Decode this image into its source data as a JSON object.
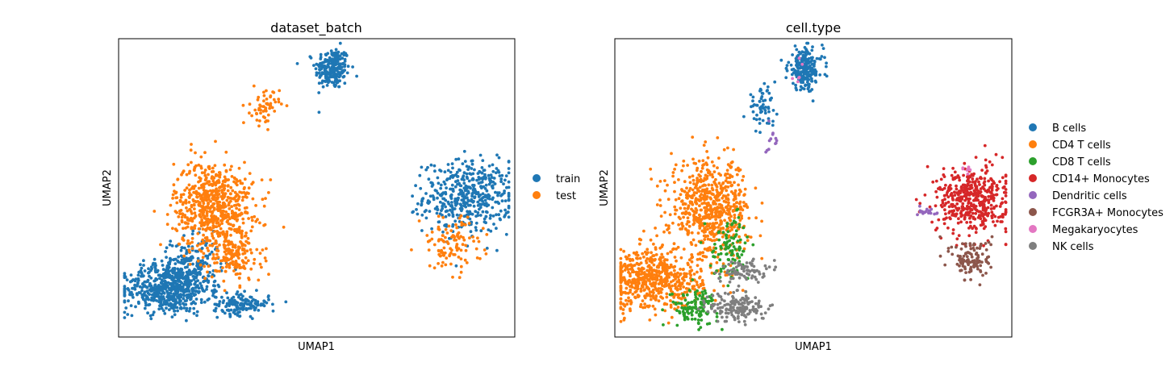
{
  "chart_data": [
    {
      "type": "scatter",
      "title": "dataset_batch",
      "xlabel": "UMAP1",
      "ylabel": "UMAP2",
      "xticks": [],
      "yticks": [],
      "grid": false,
      "legend_placement": "right, outside axes",
      "xlim": [
        0,
        10
      ],
      "ylim": [
        0,
        10
      ],
      "series": [
        {
          "name": "train",
          "color": "#1f77b4",
          "points_approx": 2200,
          "clusters": [
            {
              "x": 5.4,
              "y": 9.0,
              "sx": 0.22,
              "sy": 0.35,
              "n": 230
            },
            {
              "x": 8.8,
              "y": 4.7,
              "sx": 0.55,
              "sy": 0.6,
              "n": 460
            },
            {
              "x": 1.2,
              "y": 1.6,
              "sx": 0.55,
              "sy": 0.4,
              "n": 520
            },
            {
              "x": 3.1,
              "y": 1.1,
              "sx": 0.35,
              "sy": 0.18,
              "n": 150
            },
            {
              "x": 1.8,
              "y": 2.3,
              "sx": 0.4,
              "sy": 0.5,
              "n": 260
            }
          ]
        },
        {
          "name": "test",
          "color": "#ff7f0e",
          "points_approx": 1500,
          "clusters": [
            {
              "x": 2.4,
              "y": 4.4,
              "sx": 0.5,
              "sy": 0.75,
              "n": 650
            },
            {
              "x": 2.9,
              "y": 2.7,
              "sx": 0.35,
              "sy": 0.45,
              "n": 160
            },
            {
              "x": 3.7,
              "y": 7.7,
              "sx": 0.18,
              "sy": 0.3,
              "n": 60
            },
            {
              "x": 8.4,
              "y": 3.1,
              "sx": 0.4,
              "sy": 0.45,
              "n": 110
            }
          ]
        }
      ]
    },
    {
      "type": "scatter",
      "title": "cell.type",
      "xlabel": "UMAP1",
      "ylabel": "UMAP2",
      "xticks": [],
      "yticks": [],
      "grid": false,
      "legend_placement": "right, outside axes",
      "xlim": [
        0,
        10
      ],
      "ylim": [
        0,
        10
      ],
      "series": [
        {
          "name": "B cells",
          "color": "#1f77b4",
          "points_approx": 280,
          "clusters": [
            {
              "x": 4.8,
              "y": 9.0,
              "sx": 0.22,
              "sy": 0.35,
              "n": 220
            },
            {
              "x": 3.7,
              "y": 7.7,
              "sx": 0.18,
              "sy": 0.3,
              "n": 60
            }
          ]
        },
        {
          "name": "CD4 T cells",
          "color": "#ff7f0e",
          "points_approx": 1300,
          "clusters": [
            {
              "x": 2.4,
              "y": 4.3,
              "sx": 0.5,
              "sy": 0.8,
              "n": 650
            },
            {
              "x": 1.0,
              "y": 1.9,
              "sx": 0.6,
              "sy": 0.5,
              "n": 600
            }
          ]
        },
        {
          "name": "CD8 T cells",
          "color": "#2ca02c",
          "points_approx": 220,
          "clusters": [
            {
              "x": 2.0,
              "y": 1.0,
              "sx": 0.3,
              "sy": 0.3,
              "n": 120
            },
            {
              "x": 2.9,
              "y": 3.0,
              "sx": 0.25,
              "sy": 0.5,
              "n": 100
            }
          ]
        },
        {
          "name": "CD14+ Monocytes",
          "color": "#d62728",
          "points_approx": 450,
          "clusters": [
            {
              "x": 9.0,
              "y": 4.6,
              "sx": 0.45,
              "sy": 0.55,
              "n": 450
            }
          ]
        },
        {
          "name": "Dendritic cells",
          "color": "#9467bd",
          "points_approx": 30,
          "clusters": [
            {
              "x": 7.9,
              "y": 4.2,
              "sx": 0.12,
              "sy": 0.08,
              "n": 20
            },
            {
              "x": 4.0,
              "y": 6.7,
              "sx": 0.08,
              "sy": 0.25,
              "n": 12
            }
          ]
        },
        {
          "name": "FCGR3A+ Monocytes",
          "color": "#8c564b",
          "points_approx": 130,
          "clusters": [
            {
              "x": 9.0,
              "y": 2.6,
              "sx": 0.25,
              "sy": 0.35,
              "n": 120
            }
          ]
        },
        {
          "name": "Megakaryocytes",
          "color": "#e377c2",
          "points_approx": 15,
          "clusters": [
            {
              "x": 8.9,
              "y": 5.6,
              "sx": 0.08,
              "sy": 0.08,
              "n": 8
            },
            {
              "x": 4.6,
              "y": 8.9,
              "sx": 0.1,
              "sy": 0.3,
              "n": 6
            }
          ]
        },
        {
          "name": "NK cells",
          "color": "#7f7f7f",
          "points_approx": 250,
          "clusters": [
            {
              "x": 3.1,
              "y": 1.0,
              "sx": 0.35,
              "sy": 0.25,
              "n": 160
            },
            {
              "x": 3.2,
              "y": 2.2,
              "sx": 0.3,
              "sy": 0.2,
              "n": 80
            }
          ]
        }
      ]
    }
  ]
}
